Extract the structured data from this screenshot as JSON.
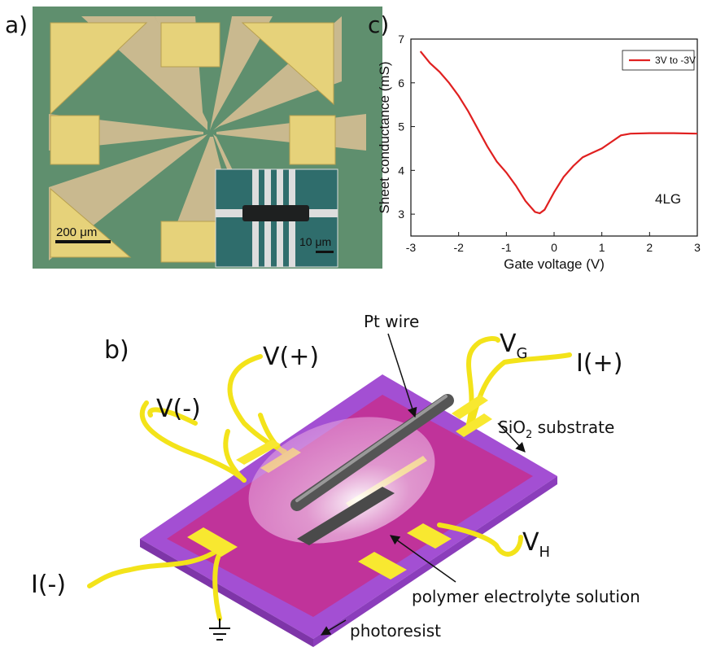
{
  "panel_labels": [
    "a)",
    "c)",
    "b)"
  ],
  "micrograph": {
    "scale_bar": "200 μm",
    "inset_scale_bar": "10 μm"
  },
  "chart_data": {
    "type": "line",
    "xlabel": "Gate voltage (V)",
    "ylabel": "Sheet conductance (mS)",
    "annotation": "4LG",
    "x": [
      -2.8,
      -2.6,
      -2.4,
      -2.2,
      -2.0,
      -1.8,
      -1.6,
      -1.4,
      -1.2,
      -1.0,
      -0.8,
      -0.6,
      -0.4,
      -0.3,
      -0.2,
      0.0,
      0.2,
      0.4,
      0.6,
      0.8,
      1.0,
      1.2,
      1.4,
      1.6,
      2.0,
      2.5,
      3.0
    ],
    "series": [
      {
        "name": "3V to -3V",
        "color": "#e02020",
        "values": [
          6.72,
          6.45,
          6.25,
          6.0,
          5.7,
          5.35,
          4.95,
          4.55,
          4.2,
          3.95,
          3.65,
          3.3,
          3.05,
          3.02,
          3.1,
          3.5,
          3.85,
          4.1,
          4.3,
          4.4,
          4.5,
          4.65,
          4.8,
          4.84,
          4.85,
          4.85,
          4.84
        ]
      }
    ],
    "xlim": [
      -3,
      3
    ],
    "xticks": [
      -3,
      -2,
      -1,
      0,
      1,
      2,
      3
    ],
    "ylim": [
      2.5,
      7
    ],
    "yticks": [
      3,
      4,
      5,
      6,
      7
    ],
    "grid": false,
    "legend": "upper right"
  },
  "schematic": {
    "pt_wire": "Pt wire",
    "v_plus": "V(+)",
    "v_minus": "V(-)",
    "v_g": {
      "main": "V",
      "sub": "G"
    },
    "i_plus": "I(+)",
    "substrate": {
      "main": "SiO",
      "sub": "2",
      "rest": " substrate"
    },
    "v_h": {
      "main": "V",
      "sub": "H"
    },
    "i_minus": "I(-)",
    "electrolyte": "polymer electrolyte solution",
    "photoresist": "photoresist"
  }
}
